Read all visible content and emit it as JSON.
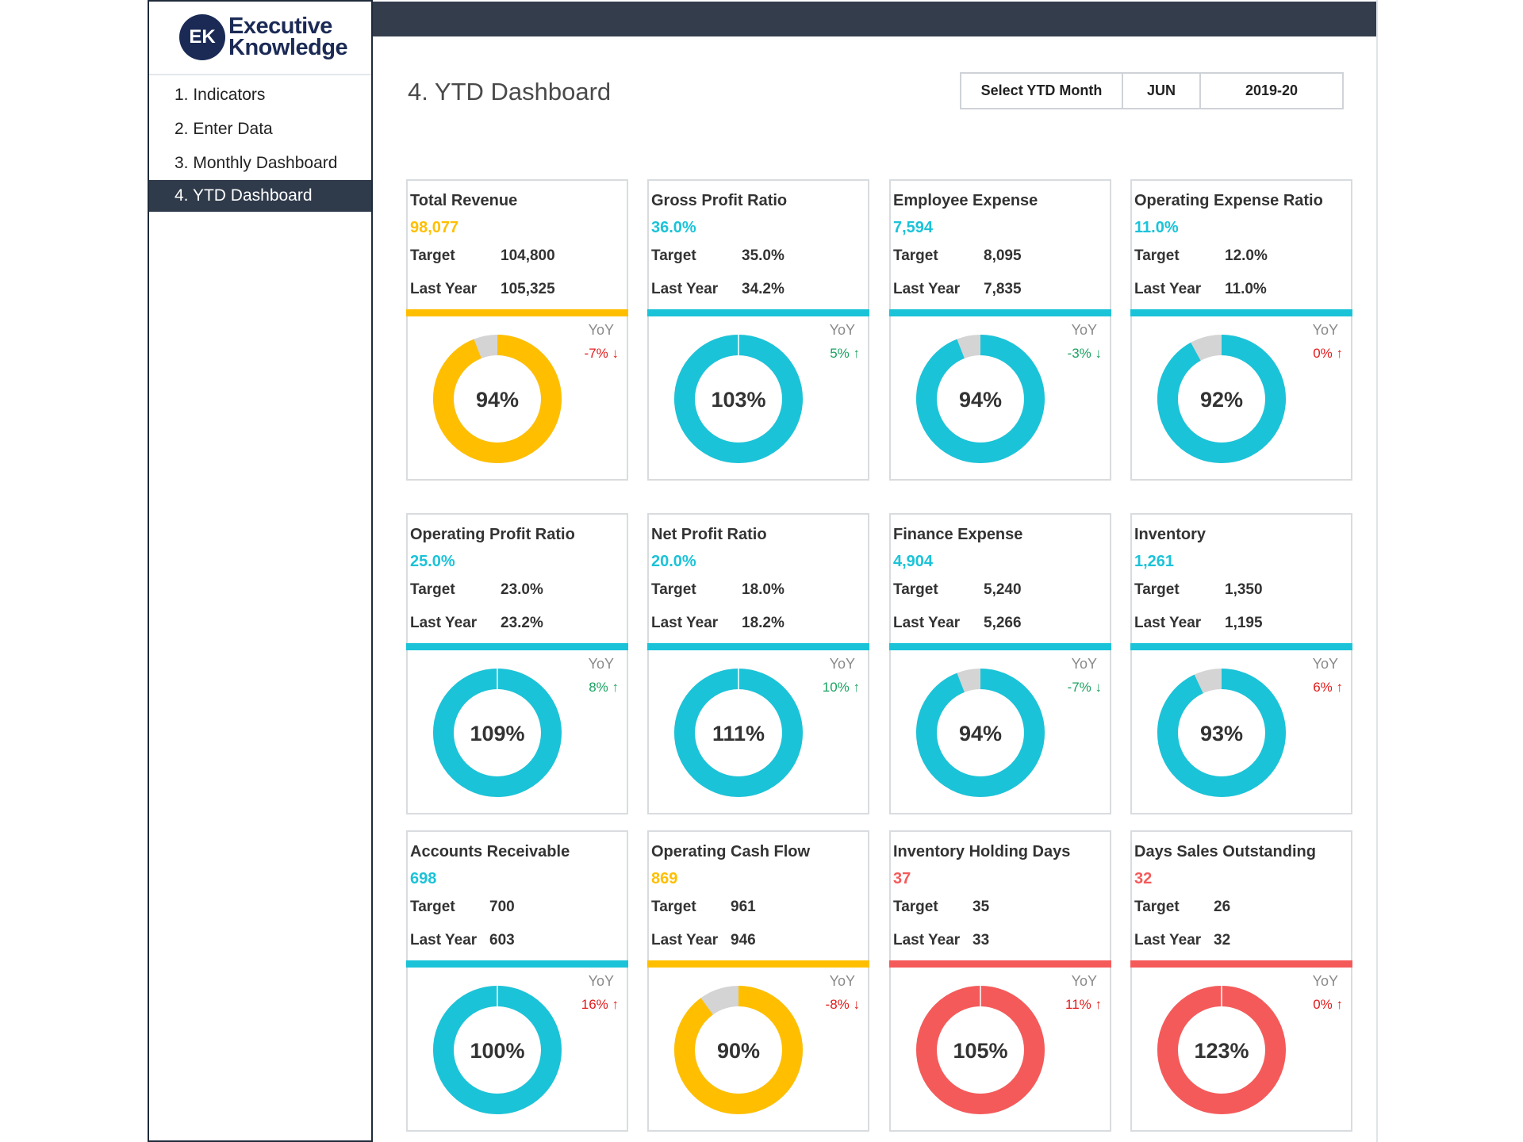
{
  "logo": {
    "badge": "EK",
    "line1": "Executive",
    "line2": "Knowledge"
  },
  "nav": [
    {
      "label": "1. Indicators",
      "active": false
    },
    {
      "label": "2. Enter Data",
      "active": false
    },
    {
      "label": "3. Monthly Dashboard",
      "active": false
    },
    {
      "label": "4. YTD Dashboard",
      "active": true
    }
  ],
  "page_title": "4. YTD Dashboard",
  "selector": {
    "label": "Select YTD Month",
    "month": "JUN",
    "year": "2019-20"
  },
  "labels": {
    "target": "Target",
    "last_year": "Last Year",
    "yoy": "YoY"
  },
  "colors": {
    "yellow": "#ffbf00",
    "teal": "#1bc3d8",
    "red": "#f55a5a",
    "gray": "#d4d4d4",
    "up_green": "#1aa260",
    "down_red": "#e21b1b"
  },
  "cards": [
    {
      "title": "Total Revenue",
      "value": "98,077",
      "target": "104,800",
      "last_year": "105,325",
      "yoy": "-7% ↓",
      "yoy_dir": "bad",
      "pct": 94,
      "pct_label": "94%",
      "color": "yellow"
    },
    {
      "title": "Gross Profit Ratio",
      "value": "36.0%",
      "target": "35.0%",
      "last_year": "34.2%",
      "yoy": "5% ↑",
      "yoy_dir": "good",
      "pct": 103,
      "pct_label": "103%",
      "color": "teal"
    },
    {
      "title": "Employee Expense",
      "value": "7,594",
      "target": "8,095",
      "last_year": "7,835",
      "yoy": "-3% ↓",
      "yoy_dir": "good",
      "pct": 94,
      "pct_label": "94%",
      "color": "teal"
    },
    {
      "title": "Operating Expense Ratio",
      "value": "11.0%",
      "target": "12.0%",
      "last_year": "11.0%",
      "yoy": "0% ↑",
      "yoy_dir": "bad",
      "pct": 92,
      "pct_label": "92%",
      "color": "teal"
    },
    {
      "title": "Operating Profit Ratio",
      "value": "25.0%",
      "target": "23.0%",
      "last_year": "23.2%",
      "yoy": "8% ↑",
      "yoy_dir": "good",
      "pct": 109,
      "pct_label": "109%",
      "color": "teal"
    },
    {
      "title": "Net Profit Ratio",
      "value": "20.0%",
      "target": "18.0%",
      "last_year": "18.2%",
      "yoy": "10% ↑",
      "yoy_dir": "good",
      "pct": 111,
      "pct_label": "111%",
      "color": "teal"
    },
    {
      "title": "Finance Expense",
      "value": "4,904",
      "target": "5,240",
      "last_year": "5,266",
      "yoy": "-7% ↓",
      "yoy_dir": "good",
      "pct": 94,
      "pct_label": "94%",
      "color": "teal"
    },
    {
      "title": "Inventory",
      "value": "1,261",
      "target": "1,350",
      "last_year": "1,195",
      "yoy": "6% ↑",
      "yoy_dir": "bad",
      "pct": 93,
      "pct_label": "93%",
      "color": "teal"
    },
    {
      "title": "Accounts Receivable",
      "value": "698",
      "target": "700",
      "last_year": "603",
      "yoy": "16% ↑",
      "yoy_dir": "bad",
      "pct": 100,
      "pct_label": "100%",
      "color": "teal"
    },
    {
      "title": "Operating Cash Flow",
      "value": "869",
      "target": "961",
      "last_year": "946",
      "yoy": "-8% ↓",
      "yoy_dir": "bad",
      "pct": 90,
      "pct_label": "90%",
      "color": "yellow"
    },
    {
      "title": "Inventory Holding Days",
      "value": "37",
      "target": "35",
      "last_year": "33",
      "yoy": "11% ↑",
      "yoy_dir": "bad",
      "pct": 105,
      "pct_label": "105%",
      "color": "red"
    },
    {
      "title": "Days Sales Outstanding",
      "value": "32",
      "target": "26",
      "last_year": "32",
      "yoy": "0% ↑",
      "yoy_dir": "bad",
      "pct": 123,
      "pct_label": "123%",
      "color": "red"
    }
  ]
}
